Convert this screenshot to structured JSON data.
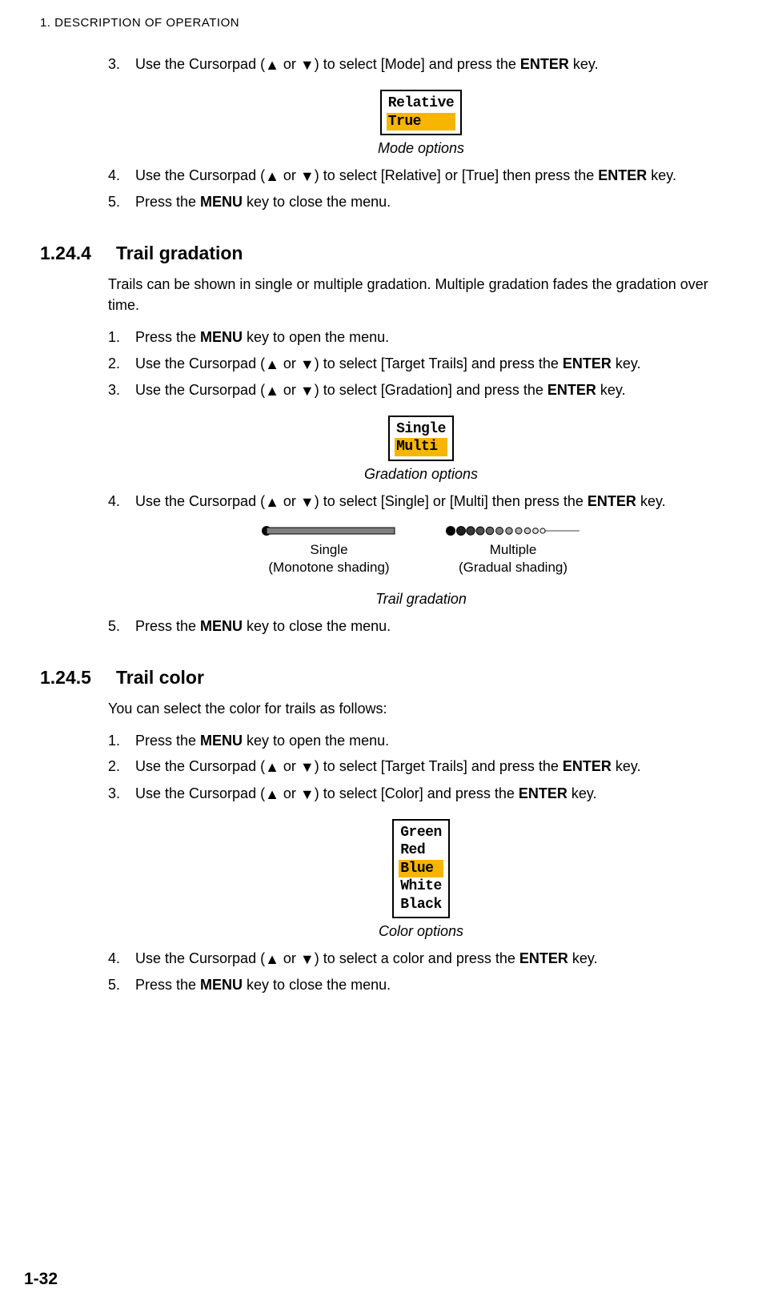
{
  "header": "1.  DESCRIPTION OF OPERATION",
  "page_number": "1-32",
  "tri_up": "▲",
  "tri_down": "▼",
  "step_a": {
    "num": "3.",
    "pre": "Use the Cursorpad (",
    "mid": " or ",
    "post": ") to select [Mode] and press the ",
    "key": "ENTER",
    "tail": " key."
  },
  "mode_box": {
    "opt1": "Relative",
    "opt2": "True    ",
    "highlight_bg": "#f7b500",
    "box_bg": "#ffffff",
    "border": "#000000"
  },
  "mode_caption": "Mode options",
  "step_b": {
    "num": "4.",
    "pre": "Use the Cursorpad (",
    "mid": " or ",
    "post": ") to select [Relative] or [True] then press the ",
    "key": "ENTER",
    "tail": "key."
  },
  "step_c": {
    "num": "5.",
    "pre": "Press the ",
    "key": "MENU",
    "tail": " key to close the menu."
  },
  "sec1": {
    "num": "1.24.4",
    "title": "Trail gradation"
  },
  "sec1_intro": "Trails can be shown in single or multiple gradation. Multiple gradation fades the gradation over time.",
  "sec1_steps": {
    "s1": {
      "num": "1.",
      "pre": "Press the ",
      "key": "MENU",
      "tail": " key to open the menu."
    },
    "s2": {
      "num": "2.",
      "pre": "Use the Cursorpad (",
      "mid": " or ",
      "post": ") to select [Target Trails] and press the ",
      "key": "ENTER",
      "tail": " key."
    },
    "s3": {
      "num": "3.",
      "pre": "Use the Cursorpad (",
      "mid": " or ",
      "post": ") to select [Gradation] and press the ",
      "key": "ENTER",
      "tail": " key."
    }
  },
  "grad_box": {
    "opt1": "Single",
    "opt2": "Multi ",
    "highlight_bg": "#f7b500"
  },
  "grad_caption": "Gradation options",
  "sec1_s4": {
    "num": "4.",
    "pre": "Use the Cursorpad (",
    "mid": " or ",
    "post": ") to select [Single] or [Multi] then press the ",
    "key": "ENTER",
    "tail": "key."
  },
  "grad_illu": {
    "single_label1": "Single",
    "single_label2": "(Monotone shading)",
    "multi_label1": "Multiple",
    "multi_label2": "(Gradual shading)",
    "single_bar": {
      "width": 170,
      "height": 10,
      "dot_r": 5,
      "fill": "#808080"
    },
    "multi_bar": {
      "width": 170,
      "height": 10,
      "dot_r": 5
    }
  },
  "grad_illu_caption": "Trail gradation",
  "sec1_s5": {
    "num": "5.",
    "pre": "Press the ",
    "key": "MENU",
    "tail": " key to close the menu."
  },
  "sec2": {
    "num": "1.24.5",
    "title": "Trail color"
  },
  "sec2_intro": "You can select the color for trails as follows:",
  "sec2_steps": {
    "s1": {
      "num": "1.",
      "pre": "Press the ",
      "key": "MENU",
      "tail": " key to open the menu."
    },
    "s2": {
      "num": "2.",
      "pre": "Use the Cursorpad (",
      "mid": " or ",
      "post": ") to select [Target Trails] and press the ",
      "key": "ENTER",
      "tail": " key."
    },
    "s3": {
      "num": "3.",
      "pre": "Use the Cursorpad (",
      "mid": " or ",
      "post": ") to select [Color] and press the ",
      "key": "ENTER",
      "tail": " key."
    }
  },
  "color_box": {
    "opts": [
      "Green",
      "Red  ",
      "Blue ",
      "White",
      "Black"
    ],
    "highlight_index": 2,
    "highlight_bg": "#f7b500"
  },
  "color_caption": "Color options",
  "sec2_s4": {
    "num": "4.",
    "pre": "Use the Cursorpad (",
    "mid": " or ",
    "post": ") to select a color and press the ",
    "key": "ENTER",
    "tail": " key."
  },
  "sec2_s5": {
    "num": "5.",
    "pre": "Press the ",
    "key": "MENU",
    "tail": " key to close the menu."
  }
}
